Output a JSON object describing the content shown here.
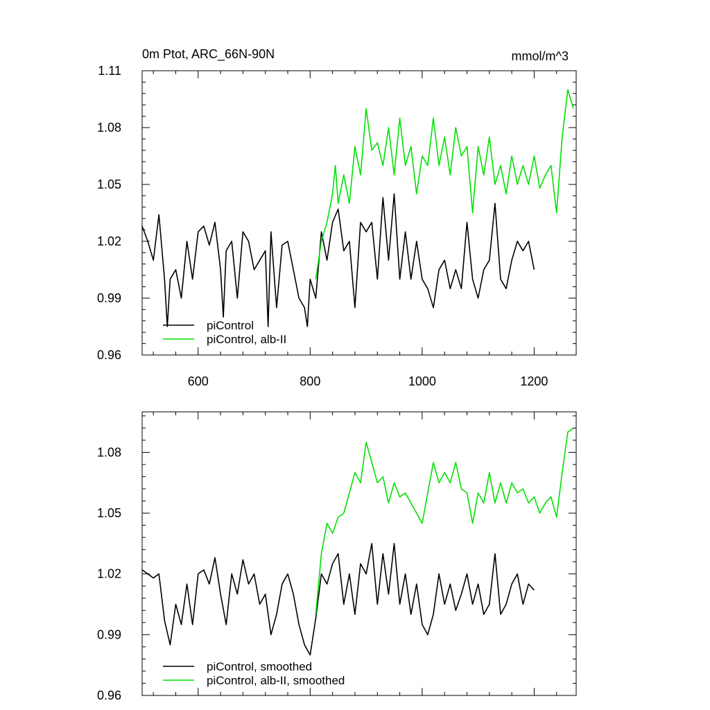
{
  "chart_data": [
    {
      "type": "line",
      "title": "0m Ptot, ARC_66N-90N",
      "units": "mmol/m^3",
      "xlim": [
        500,
        1275
      ],
      "ylim": [
        0.96,
        1.11
      ],
      "xticks": [
        600,
        800,
        1000,
        1200
      ],
      "xtick_labels": [
        "600",
        "800",
        "1000",
        "1200"
      ],
      "yticks": [
        0.96,
        0.99,
        1.02,
        1.05,
        1.08,
        1.11
      ],
      "ytick_labels": [
        "0.96",
        "0.99",
        "1.02",
        "1.05",
        "1.08",
        "1.11"
      ],
      "legend_position": "bottom-left",
      "series": [
        {
          "name": "piControl",
          "color": "#000000",
          "x": [
            500,
            510,
            520,
            530,
            540,
            545,
            550,
            560,
            570,
            580,
            590,
            600,
            610,
            620,
            630,
            640,
            645,
            650,
            660,
            670,
            680,
            690,
            700,
            710,
            720,
            725,
            730,
            740,
            750,
            760,
            770,
            780,
            790,
            795,
            800,
            810,
            820,
            830,
            840,
            850,
            860,
            870,
            880,
            890,
            900,
            910,
            920,
            930,
            940,
            950,
            960,
            970,
            980,
            990,
            1000,
            1010,
            1020,
            1030,
            1040,
            1050,
            1060,
            1070,
            1080,
            1090,
            1100,
            1110,
            1120,
            1130,
            1140,
            1150,
            1160,
            1170,
            1180,
            1190,
            1200
          ],
          "y": [
            1.028,
            1.02,
            1.01,
            1.034,
            1.0,
            0.975,
            1.0,
            1.005,
            0.99,
            1.02,
            1.0,
            1.025,
            1.028,
            1.018,
            1.03,
            1.005,
            0.98,
            1.015,
            1.02,
            0.99,
            1.025,
            1.02,
            1.005,
            1.01,
            1.015,
            0.975,
            1.025,
            0.985,
            1.018,
            1.02,
            1.005,
            0.99,
            0.985,
            0.975,
            1.0,
            0.99,
            1.025,
            1.01,
            1.03,
            1.037,
            1.015,
            1.02,
            0.985,
            1.03,
            1.025,
            1.03,
            1.0,
            1.043,
            1.01,
            1.045,
            1.0,
            1.025,
            1.0,
            1.02,
            1.0,
            0.995,
            0.985,
            1.005,
            1.01,
            0.995,
            1.005,
            0.995,
            1.03,
            1.0,
            0.99,
            1.005,
            1.01,
            1.04,
            1.0,
            0.995,
            1.01,
            1.02,
            1.015,
            1.02,
            1.005
          ]
        },
        {
          "name": "piControl, alb-II",
          "color": "#00e000",
          "x": [
            810,
            820,
            830,
            840,
            845,
            850,
            860,
            870,
            880,
            890,
            900,
            910,
            920,
            930,
            940,
            950,
            960,
            970,
            980,
            990,
            1000,
            1010,
            1020,
            1030,
            1040,
            1050,
            1060,
            1070,
            1080,
            1090,
            1100,
            1110,
            1120,
            1130,
            1140,
            1150,
            1160,
            1170,
            1180,
            1190,
            1200,
            1210,
            1220,
            1230,
            1240,
            1250,
            1260,
            1270
          ],
          "y": [
            1.0,
            1.02,
            1.03,
            1.045,
            1.06,
            1.04,
            1.055,
            1.04,
            1.07,
            1.055,
            1.09,
            1.068,
            1.072,
            1.06,
            1.08,
            1.055,
            1.085,
            1.06,
            1.07,
            1.045,
            1.065,
            1.06,
            1.085,
            1.06,
            1.075,
            1.055,
            1.08,
            1.065,
            1.07,
            1.035,
            1.07,
            1.055,
            1.075,
            1.05,
            1.06,
            1.045,
            1.065,
            1.05,
            1.06,
            1.05,
            1.065,
            1.048,
            1.055,
            1.06,
            1.035,
            1.075,
            1.1,
            1.09
          ]
        }
      ]
    },
    {
      "type": "line",
      "title": "",
      "xlim": [
        500,
        1275
      ],
      "ylim": [
        0.96,
        1.1
      ],
      "xticks": [
        600,
        800,
        1000,
        1200
      ],
      "yticks": [
        0.96,
        0.99,
        1.02,
        1.05,
        1.08
      ],
      "ytick_labels": [
        "0.96",
        "0.99",
        "1.02",
        "1.05",
        "1.08"
      ],
      "legend_position": "bottom-left",
      "series": [
        {
          "name": "piControl, smoothed",
          "color": "#000000",
          "x": [
            500,
            510,
            520,
            530,
            540,
            550,
            560,
            570,
            580,
            590,
            600,
            610,
            620,
            630,
            640,
            650,
            660,
            670,
            680,
            690,
            700,
            710,
            720,
            730,
            740,
            750,
            760,
            770,
            780,
            790,
            800,
            810,
            820,
            830,
            840,
            850,
            860,
            870,
            880,
            890,
            900,
            910,
            920,
            930,
            940,
            950,
            960,
            970,
            980,
            990,
            1000,
            1010,
            1020,
            1030,
            1040,
            1050,
            1060,
            1070,
            1080,
            1090,
            1100,
            1110,
            1120,
            1130,
            1140,
            1150,
            1160,
            1170,
            1180,
            1190,
            1200
          ],
          "y": [
            1.022,
            1.02,
            1.018,
            1.02,
            0.997,
            0.985,
            1.005,
            0.995,
            1.015,
            0.995,
            1.02,
            1.022,
            1.015,
            1.028,
            1.01,
            0.995,
            1.02,
            1.01,
            1.027,
            1.015,
            1.02,
            1.005,
            1.01,
            0.99,
            1.0,
            1.015,
            1.02,
            1.01,
            0.995,
            0.985,
            0.98,
            0.998,
            1.02,
            1.015,
            1.025,
            1.03,
            1.005,
            1.02,
            1.0,
            1.025,
            1.02,
            1.035,
            1.005,
            1.03,
            1.01,
            1.035,
            1.005,
            1.02,
            1.0,
            1.015,
            0.995,
            0.99,
            1.0,
            1.02,
            1.005,
            1.015,
            1.002,
            1.01,
            1.02,
            1.005,
            1.015,
            1.0,
            1.005,
            1.03,
            1.0,
            1.005,
            1.015,
            1.02,
            1.005,
            1.015,
            1.012
          ]
        },
        {
          "name": "piControl, alb-II, smoothed",
          "color": "#00e000",
          "x": [
            810,
            820,
            830,
            840,
            850,
            860,
            870,
            880,
            890,
            900,
            910,
            920,
            930,
            940,
            950,
            960,
            970,
            980,
            990,
            1000,
            1010,
            1020,
            1030,
            1040,
            1050,
            1060,
            1070,
            1080,
            1090,
            1100,
            1110,
            1120,
            1130,
            1140,
            1150,
            1160,
            1170,
            1180,
            1190,
            1200,
            1210,
            1220,
            1230,
            1240,
            1250,
            1260,
            1270
          ],
          "y": [
            1.0,
            1.03,
            1.045,
            1.04,
            1.048,
            1.05,
            1.06,
            1.07,
            1.065,
            1.085,
            1.075,
            1.065,
            1.068,
            1.055,
            1.065,
            1.058,
            1.06,
            1.055,
            1.05,
            1.045,
            1.06,
            1.075,
            1.065,
            1.07,
            1.065,
            1.075,
            1.062,
            1.06,
            1.045,
            1.06,
            1.055,
            1.07,
            1.055,
            1.065,
            1.055,
            1.065,
            1.06,
            1.062,
            1.055,
            1.058,
            1.05,
            1.055,
            1.058,
            1.048,
            1.07,
            1.09,
            1.092
          ]
        }
      ]
    }
  ]
}
